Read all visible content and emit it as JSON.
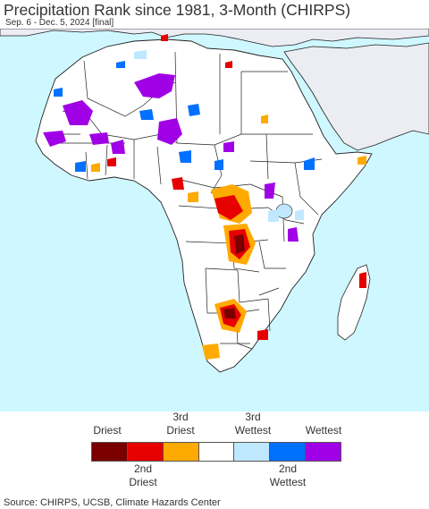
{
  "header": {
    "title": "Precipitation Rank since 1981, 3-Month (CHIRPS)",
    "subtitle": "Sep. 6 - Dec. 5, 2024 [final]"
  },
  "legend": {
    "top_labels": [
      {
        "id": "driest",
        "lines": [
          "Driest"
        ]
      },
      {
        "id": "3rd-driest",
        "lines": [
          "3rd",
          "Driest"
        ]
      },
      {
        "id": "3rd-wettest",
        "lines": [
          "3rd",
          "Wettest"
        ]
      },
      {
        "id": "wettest",
        "lines": [
          "Wettest"
        ]
      }
    ],
    "bottom_labels": [
      {
        "id": "2nd-driest",
        "lines": [
          "2nd",
          "Driest"
        ]
      },
      {
        "id": "2nd-wettest",
        "lines": [
          "2nd",
          "Wettest"
        ]
      }
    ],
    "classes": [
      {
        "id": "driest",
        "color": "#7a0000"
      },
      {
        "id": "2nd-driest",
        "color": "#e60000"
      },
      {
        "id": "3rd-driest",
        "color": "#ffaa00"
      },
      {
        "id": "normal",
        "color": "#ffffff"
      },
      {
        "id": "3rd-wettest",
        "color": "#bfe8ff"
      },
      {
        "id": "2nd-wettest",
        "color": "#0070ff"
      },
      {
        "id": "wettest",
        "color": "#a000e6"
      }
    ]
  },
  "map": {
    "ocean_color": "#cff7ff",
    "land_color": "#ffffff",
    "masked_land_color": "#ececf3",
    "border_color": "#222222"
  },
  "footer": {
    "source": "Source: CHIRPS, UCSB, Climate Hazards Center"
  }
}
